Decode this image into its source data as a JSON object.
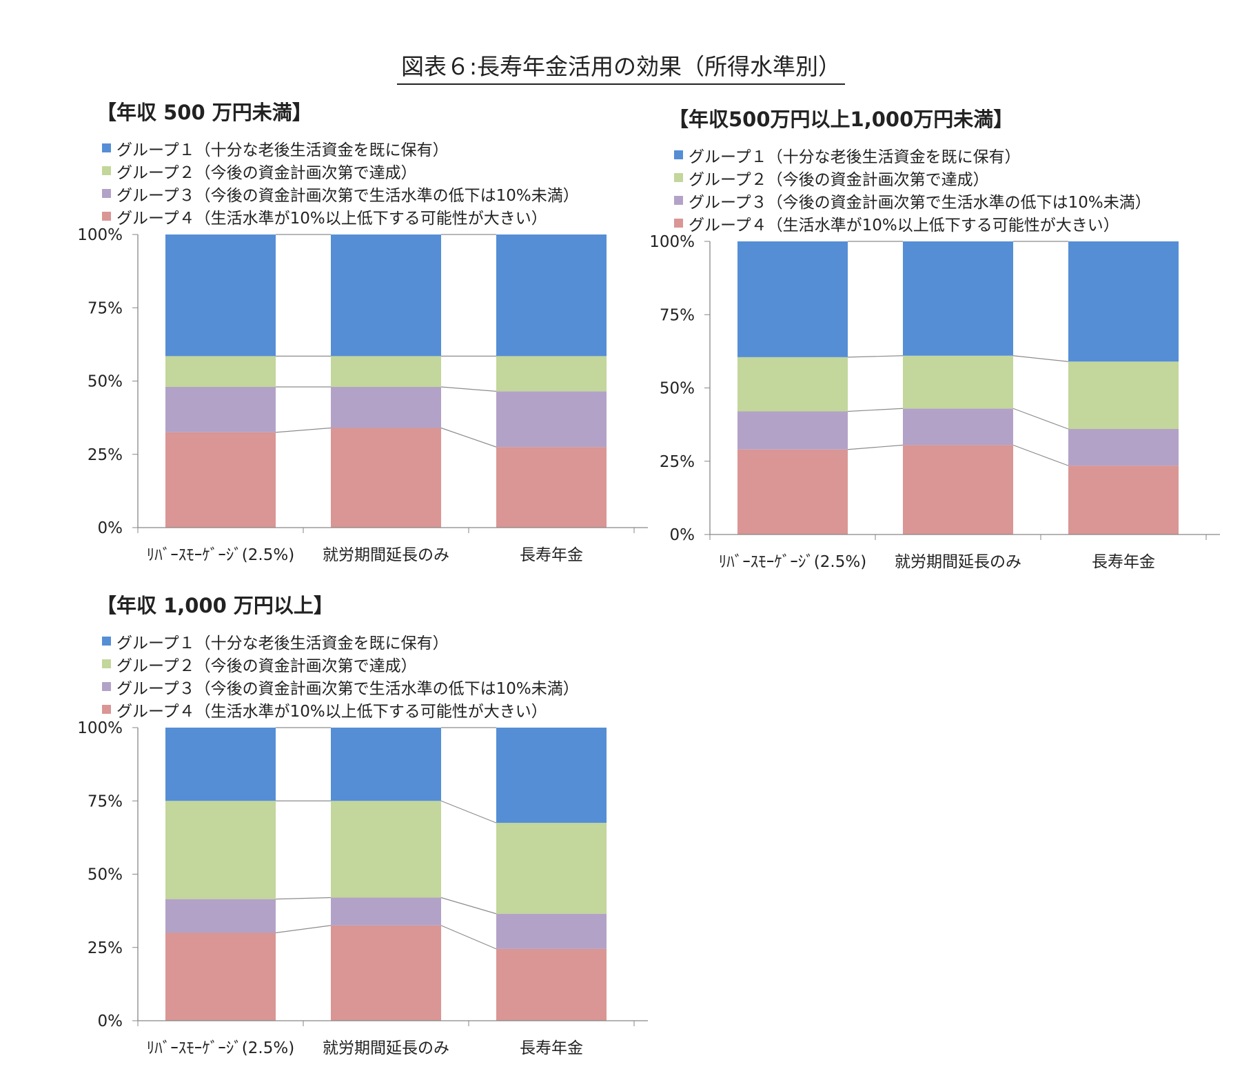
{
  "title": "図表６:長寿年金活用の効果（所得水準別）",
  "colors": {
    "group1": "#558ed5",
    "group2": "#c3d69b",
    "group3": "#b3a2c7",
    "group4": "#d99694"
  },
  "chart_data": [
    {
      "type": "bar",
      "stacked": true,
      "normalized_percent": true,
      "title": "【年収 500 万円未満】",
      "categories": [
        "ﾘﾊﾞｰｽﾓｰｹﾞｰｼﾞ(2.5%)",
        "就労期間延長のみ",
        "長寿年金"
      ],
      "yticks": [
        "0%",
        "25%",
        "50%",
        "75%",
        "100%"
      ],
      "ylim": [
        0,
        100
      ],
      "legend_position": "top",
      "series": [
        {
          "name": "グループ１（十分な老後生活資金を既に保有）",
          "values": [
            41.5,
            41.5,
            41.5
          ]
        },
        {
          "name": "グループ２（今後の資金計画次第で達成）",
          "values": [
            10.5,
            10.5,
            12.0
          ]
        },
        {
          "name": "グループ３（今後の資金計画次第で生活水準の低下は10%未満）",
          "values": [
            15.5,
            14.0,
            19.0
          ]
        },
        {
          "name": "グループ４（生活水準が10%以上低下する可能性が大きい）",
          "values": [
            32.5,
            34.0,
            27.5
          ]
        }
      ]
    },
    {
      "type": "bar",
      "stacked": true,
      "normalized_percent": true,
      "title": "【年収500万円以上1,000万円未満】",
      "categories": [
        "ﾘﾊﾞｰｽﾓｰｹﾞｰｼﾞ(2.5%)",
        "就労期間延長のみ",
        "長寿年金"
      ],
      "yticks": [
        "0%",
        "25%",
        "50%",
        "75%",
        "100%"
      ],
      "ylim": [
        0,
        100
      ],
      "legend_position": "top",
      "series": [
        {
          "name": "グループ１（十分な老後生活資金を既に保有）",
          "values": [
            39.5,
            39.0,
            41.0
          ]
        },
        {
          "name": "グループ２（今後の資金計画次第で達成）",
          "values": [
            18.5,
            18.0,
            23.0
          ]
        },
        {
          "name": "グループ３（今後の資金計画次第で生活水準の低下は10%未満）",
          "values": [
            13.0,
            12.5,
            12.5
          ]
        },
        {
          "name": "グループ４（生活水準が10%以上低下する可能性が大きい）",
          "values": [
            29.0,
            30.5,
            23.5
          ]
        }
      ]
    },
    {
      "type": "bar",
      "stacked": true,
      "normalized_percent": true,
      "title": "【年収 1,000 万円以上】",
      "categories": [
        "ﾘﾊﾞｰｽﾓｰｹﾞｰｼﾞ(2.5%)",
        "就労期間延長のみ",
        "長寿年金"
      ],
      "yticks": [
        "0%",
        "25%",
        "50%",
        "75%",
        "100%"
      ],
      "ylim": [
        0,
        100
      ],
      "legend_position": "top",
      "series": [
        {
          "name": "グループ１（十分な老後生活資金を既に保有）",
          "values": [
            25.0,
            25.0,
            32.5
          ]
        },
        {
          "name": "グループ２（今後の資金計画次第で達成）",
          "values": [
            33.5,
            33.0,
            31.0
          ]
        },
        {
          "name": "グループ３（今後の資金計画次第で生活水準の低下は10%未満）",
          "values": [
            11.5,
            9.5,
            12.0
          ]
        },
        {
          "name": "グループ４（生活水準が10%以上低下する可能性が大きい）",
          "values": [
            30.0,
            32.5,
            24.5
          ]
        }
      ]
    }
  ]
}
